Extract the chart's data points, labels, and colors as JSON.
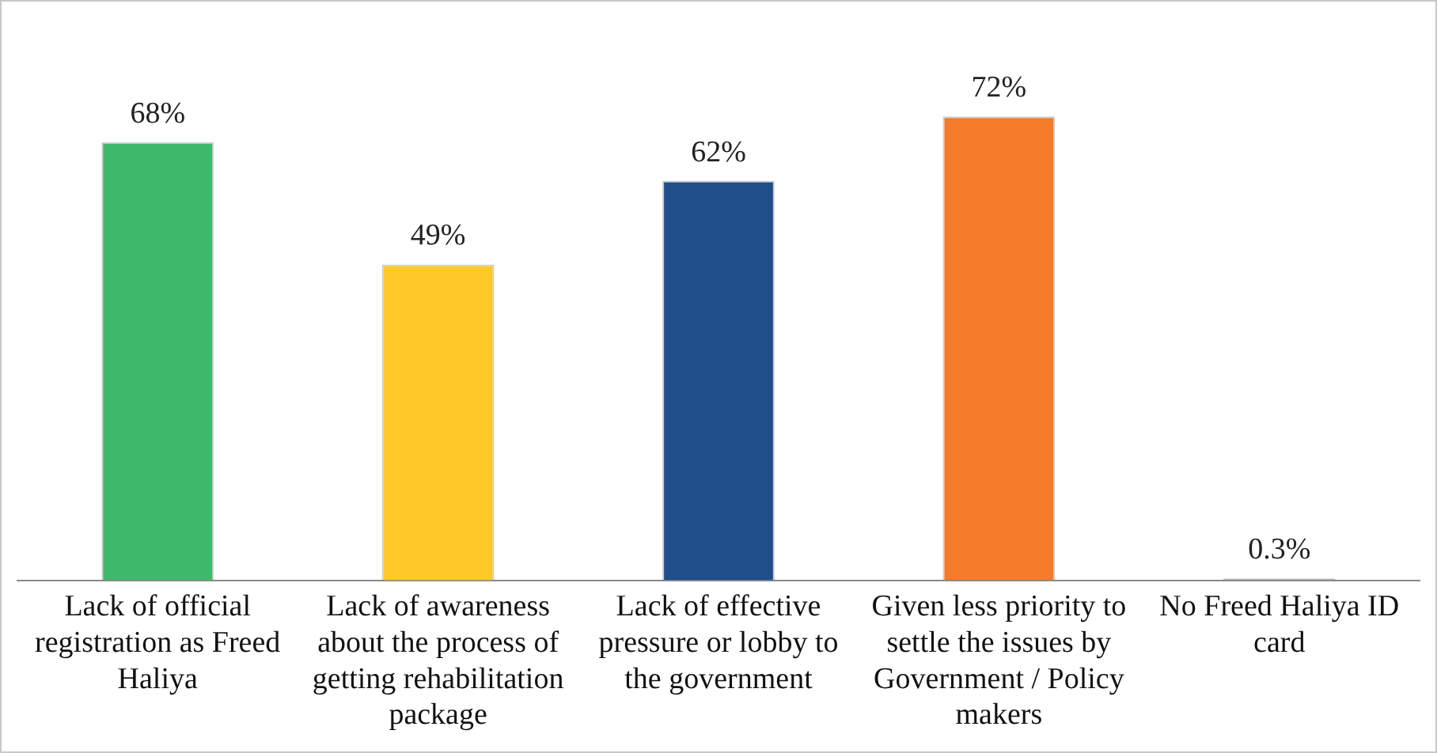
{
  "chart_data": {
    "type": "bar",
    "categories": [
      "Lack of official registration as Freed Haliya",
      "Lack of awareness about the process of getting rehabilitation package",
      "Lack of effective pressure or lobby to the government",
      "Given less priority to settle the issues by Government / Policy makers",
      "No Freed Haliya ID card"
    ],
    "values": [
      68,
      49,
      62,
      72,
      0.3
    ],
    "colors": [
      "#3cb96a",
      "#ffc928",
      "#1f4e8a",
      "#f47b2a",
      "#8c8c8c"
    ],
    "value_labels": [
      "68%",
      "49%",
      "62%",
      "72%",
      "0.3%"
    ],
    "grid": false,
    "legend": false
  }
}
